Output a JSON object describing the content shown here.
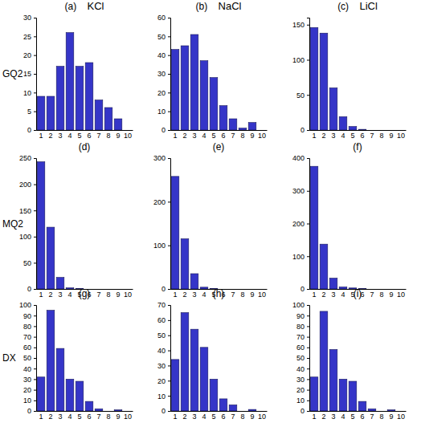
{
  "chart_data": [
    {
      "type": "bar",
      "title": "(a)",
      "subtitle": "KCl",
      "ylabel": "GQ2",
      "color": "#3535c8",
      "categories": [
        "1",
        "2",
        "3",
        "4",
        "5",
        "6",
        "7",
        "8",
        "9",
        "10"
      ],
      "values": [
        9,
        9,
        17,
        26,
        17,
        18,
        8,
        6,
        3,
        0
      ],
      "ylim": [
        0,
        30
      ],
      "yticks": [
        0,
        5,
        10,
        15,
        20,
        25,
        30
      ]
    },
    {
      "type": "bar",
      "title": "(b)",
      "subtitle": "NaCl",
      "color": "#3535c8",
      "categories": [
        "1",
        "2",
        "3",
        "4",
        "5",
        "6",
        "7",
        "8",
        "9",
        "10"
      ],
      "values": [
        43,
        45,
        51,
        37,
        28,
        13,
        6,
        1,
        4,
        0
      ],
      "ylim": [
        0,
        60
      ],
      "yticks": [
        0,
        10,
        20,
        30,
        40,
        50,
        60
      ]
    },
    {
      "type": "bar",
      "title": "(c)",
      "subtitle": "LiCl",
      "color": "#3535c8",
      "categories": [
        "1",
        "2",
        "3",
        "4",
        "5",
        "6",
        "7",
        "8",
        "9",
        "10"
      ],
      "values": [
        146,
        138,
        60,
        19,
        5,
        1,
        0,
        0,
        0,
        0
      ],
      "ylim": [
        0,
        160
      ],
      "yticks": [
        0,
        50,
        100,
        150
      ]
    },
    {
      "type": "bar",
      "title": "(d)",
      "ylabel": "MQ2",
      "color": "#3535c8",
      "categories": [
        "1",
        "2",
        "3",
        "4",
        "5",
        "6",
        "7",
        "8",
        "9",
        "10"
      ],
      "values": [
        243,
        118,
        22,
        2,
        1,
        0,
        0,
        0,
        0,
        0
      ],
      "ylim": [
        0,
        250
      ],
      "yticks": [
        0,
        50,
        100,
        150,
        200,
        250
      ]
    },
    {
      "type": "bar",
      "title": "(e)",
      "color": "#3535c8",
      "categories": [
        "1",
        "2",
        "3",
        "4",
        "5",
        "6",
        "7",
        "8",
        "9",
        "10"
      ],
      "values": [
        258,
        115,
        35,
        4,
        1,
        0,
        0,
        0,
        0,
        0
      ],
      "ylim": [
        0,
        300
      ],
      "yticks": [
        0,
        100,
        200,
        300
      ]
    },
    {
      "type": "bar",
      "title": "(f)",
      "color": "#3535c8",
      "categories": [
        "1",
        "2",
        "3",
        "4",
        "5",
        "6",
        "7",
        "8",
        "9",
        "10"
      ],
      "values": [
        375,
        137,
        33,
        6,
        3,
        1,
        0,
        0,
        0,
        0
      ],
      "ylim": [
        0,
        400
      ],
      "yticks": [
        0,
        100,
        200,
        300,
        400
      ]
    },
    {
      "type": "bar",
      "title": "(g)",
      "ylabel": "DX",
      "color": "#3535c8",
      "categories": [
        "1",
        "2",
        "3",
        "4",
        "5",
        "6",
        "7",
        "8",
        "9",
        "10"
      ],
      "values": [
        32,
        95,
        59,
        30,
        28,
        9,
        2,
        0,
        1,
        0
      ],
      "ylim": [
        0,
        100
      ],
      "yticks": [
        0,
        10,
        20,
        30,
        40,
        50,
        60,
        70,
        80,
        90,
        100
      ]
    },
    {
      "type": "bar",
      "title": "(h)",
      "color": "#3535c8",
      "categories": [
        "1",
        "2",
        "3",
        "4",
        "5",
        "6",
        "7",
        "8",
        "9",
        "10"
      ],
      "values": [
        34,
        65,
        54,
        42,
        21,
        8,
        4,
        0,
        1,
        0
      ],
      "ylim": [
        0,
        70
      ],
      "yticks": [
        0,
        10,
        20,
        30,
        40,
        50,
        60,
        70
      ]
    },
    {
      "type": "bar",
      "title": "(i)",
      "color": "#3535c8",
      "categories": [
        "1",
        "2",
        "3",
        "4",
        "5",
        "6",
        "7",
        "8",
        "9",
        "10"
      ],
      "values": [
        32,
        94,
        58,
        30,
        28,
        9,
        2,
        0,
        1,
        0
      ],
      "ylim": [
        0,
        100
      ],
      "yticks": [
        0,
        10,
        20,
        30,
        40,
        50,
        60,
        70,
        80,
        90,
        100
      ]
    }
  ]
}
